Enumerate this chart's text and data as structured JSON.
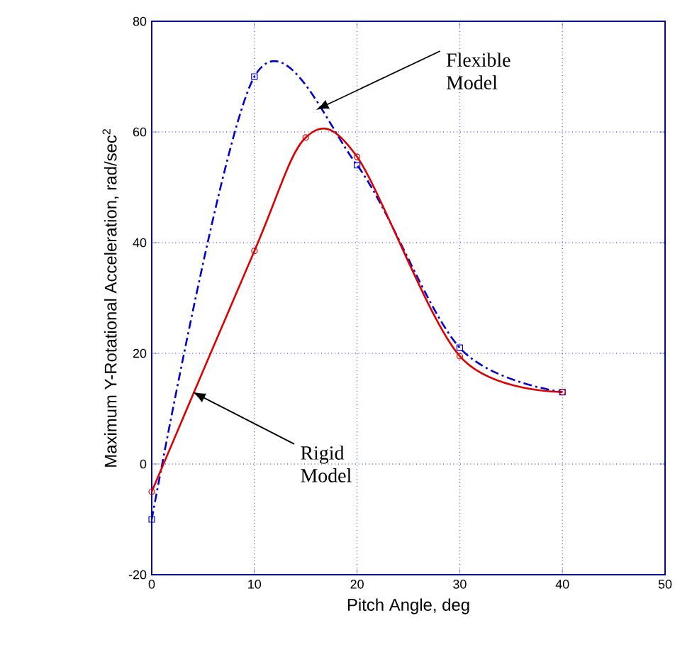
{
  "chart_data": {
    "type": "line",
    "xlabel": "Pitch Angle, deg",
    "ylabel": "Maximum Y-Rotational Acceleration, rad/sec$^{2}$",
    "xlim": [
      0,
      50
    ],
    "xticks": [
      0,
      10,
      20,
      30,
      40,
      50
    ],
    "ylim": [
      -20,
      80
    ],
    "yticks": [
      -20,
      0,
      20,
      40,
      60,
      80
    ],
    "grid": true,
    "series": [
      {
        "color": "#0000cc",
        "marker": "square",
        "line_style": "dashed",
        "x": [
          0,
          10,
          20,
          30,
          40
        ],
        "values": [
          -10,
          70,
          54,
          21,
          13
        ]
      },
      {
        "color": "#dd0000",
        "marker": "circle",
        "line_style": "solid",
        "x": [
          0,
          10,
          15,
          20,
          30,
          40
        ],
        "values": [
          -5,
          38.5,
          59,
          55.5,
          19.5,
          13
        ]
      }
    ],
    "annotations": [
      {
        "text": "Flexible Model",
        "x": 16,
        "y": 64
      },
      {
        "text": "Rigid Model",
        "x": 4,
        "y": 13
      }
    ]
  }
}
